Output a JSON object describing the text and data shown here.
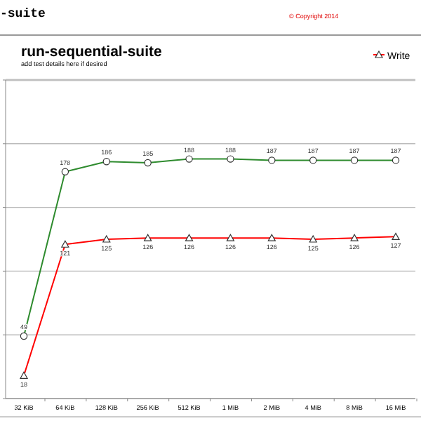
{
  "chart_data": {
    "type": "line",
    "title": "run-sequential-suite",
    "subtitle": "add test details here if desired",
    "annotations": [
      "-suite",
      "© Copyright 2014"
    ],
    "categories": [
      "32 KiB",
      "64 KiB",
      "128 KiB",
      "256 KiB",
      "512 KiB",
      "1 MiB",
      "2 MiB",
      "4 MiB",
      "8 MiB",
      "16 MiB"
    ],
    "series": [
      {
        "color": "#2e8b2e",
        "marker": "circle",
        "values": [
          49,
          178,
          186,
          185,
          188,
          188,
          187,
          187,
          187,
          187
        ]
      },
      {
        "name": "Write",
        "color": "#ff0000",
        "marker": "triangle",
        "values": [
          18,
          121,
          125,
          126,
          126,
          126,
          126,
          125,
          126,
          127
        ]
      }
    ],
    "ylim": [
      0,
      250
    ],
    "yticks": [
      {
        "value": 0,
        "label": null
      },
      {
        "value": 50,
        "label": null
      },
      {
        "value": 100,
        "label": null
      },
      {
        "value": 150,
        "label": null
      },
      {
        "value": 200,
        "label": null
      },
      {
        "value": 250,
        "label": null
      }
    ],
    "grid": "y",
    "tick_labels": "x",
    "data_labels": true,
    "legend": "top right"
  }
}
